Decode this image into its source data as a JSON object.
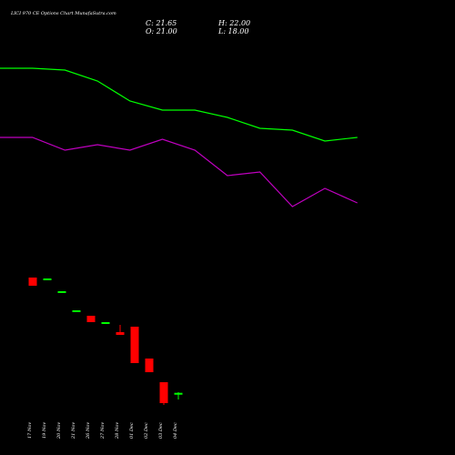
{
  "chart_data": {
    "type": "candlestick",
    "title": "LICI 970 CE Options Chart MunafaSutra.com",
    "ohlc_readout": {
      "close": "C: 21.65",
      "open": "O: 21.00",
      "high": "H: 22.00",
      "low": "L: 18.00"
    },
    "categories": [
      "17 Nov",
      "19 Nov",
      "20 Nov",
      "21 Nov",
      "26 Nov",
      "27 Nov",
      "28 Nov",
      "01 Dec",
      "02 Dec",
      "03 Dec",
      "04 Dec"
    ],
    "candles": [
      {
        "open": 85,
        "high": 85,
        "low": 80.5,
        "close": 80.5
      },
      {
        "open": 84.5,
        "high": 84.5,
        "low": 84.5,
        "close": 84.5
      },
      {
        "open": 77.5,
        "high": 77.5,
        "low": 77.5,
        "close": 77.5
      },
      {
        "open": 67,
        "high": 67,
        "low": 67,
        "close": 67
      },
      {
        "open": 64,
        "high": 64,
        "low": 60.5,
        "close": 60.5
      },
      {
        "open": 60.5,
        "high": 60.5,
        "low": 60.5,
        "close": 60.5
      },
      {
        "open": 55,
        "high": 59,
        "low": 53.5,
        "close": 53.5
      },
      {
        "open": 58,
        "high": 58,
        "low": 38,
        "close": 38
      },
      {
        "open": 40.5,
        "high": 40.5,
        "low": 33,
        "close": 33
      },
      {
        "open": 27.5,
        "high": 27.5,
        "low": 15,
        "close": 16
      },
      {
        "open": 21,
        "high": 22,
        "low": 18,
        "close": 21.65
      }
    ],
    "overlay_lines": [
      {
        "color": "#00ff00",
        "values": [
          200,
          200,
          199,
          193,
          182,
          177,
          177,
          173,
          167,
          166,
          160,
          162
        ]
      },
      {
        "color": "#c000c0",
        "values": [
          162,
          162,
          155,
          158,
          155,
          161,
          155,
          141,
          143,
          124,
          134,
          126
        ]
      }
    ],
    "up_color": "#00ff00",
    "down_color": "#ff0000",
    "background": "#000000"
  }
}
